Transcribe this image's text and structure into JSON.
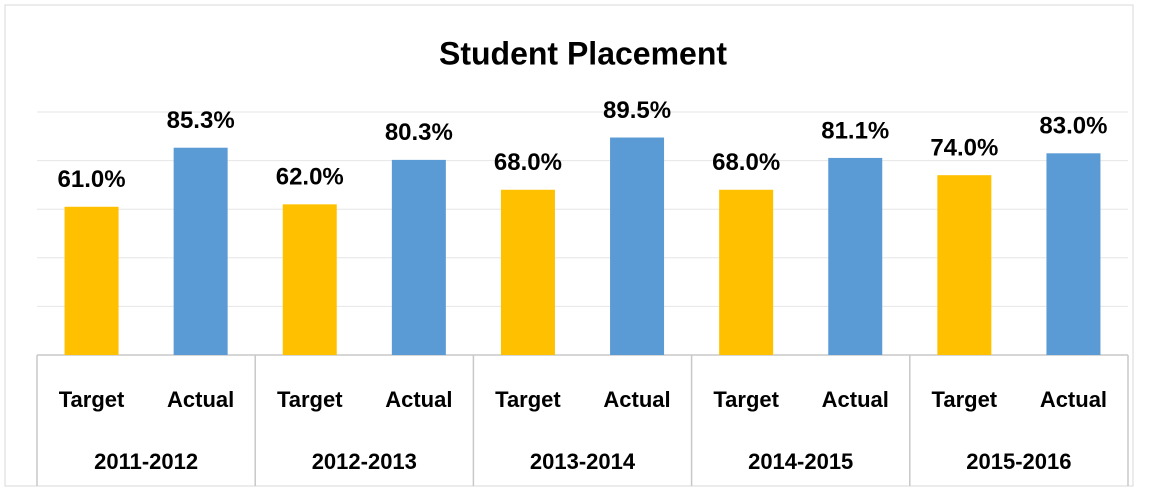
{
  "chart_data": {
    "type": "bar",
    "title": "Student Placement",
    "groups": [
      "2011-2012",
      "2012-2013",
      "2013-2014",
      "2014-2015",
      "2015-2016"
    ],
    "categories": [
      "Target",
      "Actual",
      "Target",
      "Actual",
      "Target",
      "Actual",
      "Target",
      "Actual",
      "Target",
      "Actual"
    ],
    "values": [
      61.0,
      85.3,
      62.0,
      80.3,
      68.0,
      89.5,
      68.0,
      81.1,
      74.0,
      83.0
    ],
    "value_labels": [
      "61.0%",
      "85.3%",
      "62.0%",
      "80.3%",
      "68.0%",
      "89.5%",
      "68.0%",
      "81.1%",
      "74.0%",
      "83.0%"
    ],
    "colors": [
      "#ffc000",
      "#5b9bd5",
      "#ffc000",
      "#5b9bd5",
      "#ffc000",
      "#5b9bd5",
      "#ffc000",
      "#5b9bd5",
      "#ffc000",
      "#5b9bd5"
    ],
    "ylim": [
      0,
      100
    ],
    "yticks": [
      0,
      20,
      40,
      60,
      80,
      100
    ],
    "grid": true
  }
}
